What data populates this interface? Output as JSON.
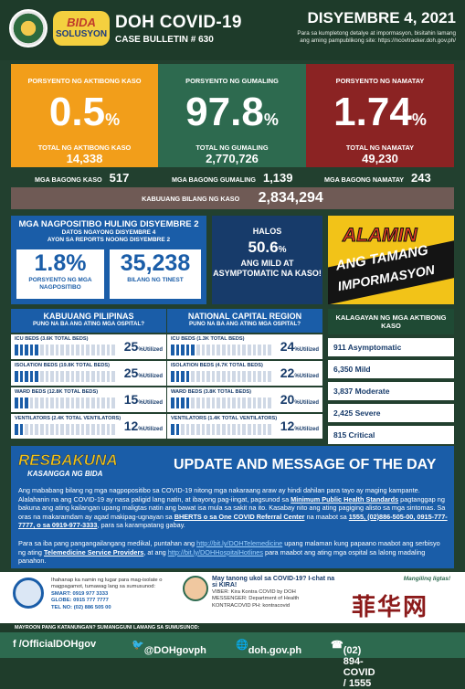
{
  "header": {
    "title": "DOH COVID-19",
    "bulletin": "CASE BULLETIN # 630",
    "date": "DISYEMBRE 4, 2021",
    "note": "Para sa kumpletong detalye at impormasyon, bisitahin lamang ang aming pampublikong site: https://ncovtracker.doh.gov.ph/",
    "logo_text": "BIDA SOLUSYON"
  },
  "stats": {
    "active": {
      "label": "PORSYENTO NG AKTIBONG KASO",
      "pct": "0.5",
      "sub": "TOTAL NG AKTIBONG KASO",
      "count": "14,338"
    },
    "recovered": {
      "label": "PORSYENTO NG GUMALING",
      "pct": "97.8",
      "sub": "TOTAL NG GUMALING",
      "count": "2,770,726"
    },
    "deaths": {
      "label": "PORSYENTO NG NAMATAY",
      "pct": "1.74",
      "sub": "TOTAL NG NAMATAY",
      "count": "49,230"
    },
    "pct_sign": "%"
  },
  "new": {
    "cases_label": "MGA BAGONG KASO",
    "cases": "517",
    "recovered_label": "MGA BAGONG GUMALING",
    "recovered": "1,139",
    "deaths_label": "MGA BAGONG NAMATAY",
    "deaths": "243"
  },
  "total": {
    "label": "KABUUANG BILANG NG KASO",
    "value": "2,834,294"
  },
  "positives": {
    "title": "MGA NAGPOSITIBO HULING DISYEMBRE 2",
    "sub1": "DATOS NGAYONG DISYEMBRE 4",
    "sub2": "AYON SA REPORTS NOONG DISYEMBRE 2",
    "rate": "1.8",
    "rate_sign": "%",
    "rate_caption": "PORSYENTO NG MGA NAGPOSITIBO",
    "tested": "35,238",
    "tested_caption": "BILANG NG TINEST"
  },
  "mild": {
    "a": "HALOS",
    "pct": "50.6",
    "pct_sign": "%",
    "c": "ANG MILD AT ASYMPTOMATIC NA KASO!"
  },
  "alamin": {
    "a": "ALAMIN",
    "b": "ANG TAMANG",
    "c": "IMPORMASYON"
  },
  "hospital_national": {
    "title": "KABUUANG PILIPINAS",
    "sub": "PUNO NA BA ANG ATING MGA OSPITAL?",
    "rows": [
      {
        "label": "ICU BEDS (3.6K TOTAL BEDS)",
        "pct": "25",
        "fill": 0.25
      },
      {
        "label": "ISOLATION BEDS (19.8K TOTAL BEDS)",
        "pct": "25",
        "fill": 0.25
      },
      {
        "label": "WARD BEDS (12.8K TOTAL BEDS)",
        "pct": "15",
        "fill": 0.15
      },
      {
        "label": "VENTILATORS (2.4K TOTAL VENTILATORS)",
        "pct": "12",
        "fill": 0.12
      }
    ]
  },
  "hospital_ncr": {
    "title": "NATIONAL CAPITAL REGION",
    "sub": "PUNO NA BA ANG ATING MGA OSPITAL?",
    "rows": [
      {
        "label": "ICU BEDS (1.3K TOTAL BEDS)",
        "pct": "24",
        "fill": 0.24
      },
      {
        "label": "ISOLATION BEDS (4.7K TOTAL BEDS)",
        "pct": "22",
        "fill": 0.22
      },
      {
        "label": "WARD BEDS (3.8K TOTAL BEDS)",
        "pct": "20",
        "fill": 0.2
      },
      {
        "label": "VENTILATORS (1.4K TOTAL VENTILATORS)",
        "pct": "12",
        "fill": 0.12
      }
    ]
  },
  "utilized_label": "Utilized",
  "kalagayan": {
    "title": "KALAGAYAN NG MGA AKTIBONG KASO",
    "items": [
      "911 Asymptomatic",
      "6,350 Mild",
      "3,837 Moderate",
      "2,425 Severe",
      "815 Critical"
    ]
  },
  "update": {
    "resbakuna": "RESBAKUNA",
    "kasangga": "KASANGGA NG BIDA",
    "title": "UPDATE AND MESSAGE OF THE DAY",
    "p1_a": "Ang mababang bilang ng mga nagpopositibo sa COVID-19 nitong mga nakaraang araw ay hindi dahilan para tayo ay maging kampante. Alalahanin na ang COVID-19 ay nasa paligid lang natin, at ibayong pag-iingat, pagsunod sa ",
    "p1_link1": "Minimum Public Health Standards",
    "p1_b": " pagtanggap ng bakuna ang ating kailangan upang maligtas natin ang bawat isa mula sa sakit na ito. Kasabay nito ang ating pagiging alisto sa mga sintomas. Sa oras na makaramdam ay agad makipag-ugnayan sa ",
    "p1_link2": "BHERTS o sa One COVID Referral Center",
    "p1_c": " na maabot sa ",
    "p1_link3": "1555, (02)886-505-00, 0915-777-7777, o sa 0919-977-3333",
    "p1_d": ", para sa karampatang gabay.",
    "p2_a": "Para sa iba pang pangangailangang medikal, puntahan ang ",
    "p2_link1": "http://bit.ly/DOHTelemedicine",
    "p2_b": " upang malaman kung papaano maabot ang serbisyo ng ating ",
    "p2_link2": "Telemedicine Service Providers",
    "p2_c": ", at ang ",
    "p2_link3": "http://bit.ly/DOHHospitalHotlines",
    "p2_d": " para maabot ang ating mga ospital sa lalong madaling panahon."
  },
  "contact": {
    "c1_title": "Ihahanap ka namin ng lugar para mag-isolate o magpagamot, tumawag lang sa sumusunod:",
    "smart": "SMART: 0919 977 3333",
    "globe": "GLOBE: 0915 777 7777",
    "tel": "TEL NO: (02) 886 505 00",
    "q": "May tanong ukol sa COVID-19? I-chat na si KIRA!",
    "viber": "VIBER: Kira Kontra COVID by DOH",
    "messenger": "MESSENGER: Department of Health",
    "kontra": "KONTRACOVID PH: kontracovid",
    "manag": "Mangilinq ligtas!"
  },
  "mayroon": "MAYROON PANG KATANUNGAN? SUMANGGUNI LAMANG SA SUMUSUNOD:",
  "footer": {
    "fb": "f /OfficialDOHgov",
    "tw": "@DOHgovph",
    "web": "doh.gov.ph",
    "phone": "(02) 894-COVID / 1555"
  },
  "watermark": "菲华网"
}
